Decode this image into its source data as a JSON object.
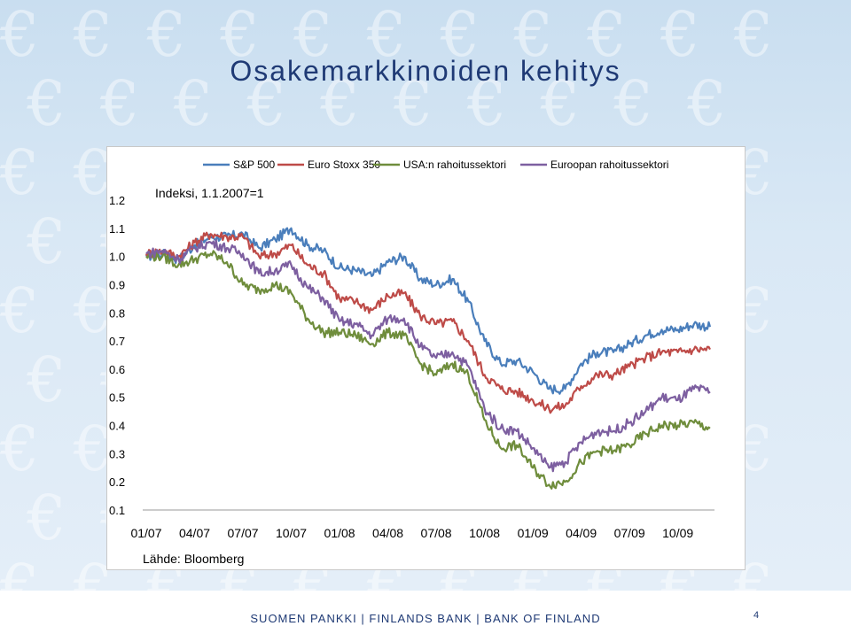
{
  "slide": {
    "title": "Osakemarkkinoiden kehitys",
    "footer": "SUOMEN PANKKI | FINLANDS BANK | BANK OF FINLAND",
    "page_number": "4"
  },
  "chart_data": {
    "type": "line",
    "subtitle": "Indeksi, 1.1.2007=1",
    "source": "Lähde: Bloomberg",
    "x": [
      "01/07",
      "02/07",
      "03/07",
      "04/07",
      "05/07",
      "06/07",
      "07/07",
      "08/07",
      "09/07",
      "10/07",
      "11/07",
      "12/07",
      "01/08",
      "02/08",
      "03/08",
      "04/08",
      "05/08",
      "06/08",
      "07/08",
      "08/08",
      "09/08",
      "10/08",
      "11/08",
      "12/08",
      "01/09",
      "02/09",
      "03/09",
      "04/09",
      "05/09",
      "06/09",
      "07/09",
      "08/09",
      "09/09",
      "10/09",
      "11/09",
      "12/09"
    ],
    "x_tick_labels": [
      "01/07",
      "04/07",
      "07/07",
      "10/07",
      "01/08",
      "04/08",
      "07/08",
      "10/08",
      "01/09",
      "04/09",
      "07/09",
      "10/09"
    ],
    "y_tick_labels": [
      "0.1",
      "0.2",
      "0.3",
      "0.4",
      "0.5",
      "0.6",
      "0.7",
      "0.8",
      "0.9",
      "1.0",
      "1.1",
      "1.2"
    ],
    "ylim": [
      0.1,
      1.2
    ],
    "grid": false,
    "legend_position": "top",
    "series": [
      {
        "name": "S&P 500",
        "color": "#4a7ebb",
        "values": [
          1.0,
          1.01,
          0.99,
          1.04,
          1.07,
          1.07,
          1.08,
          1.03,
          1.06,
          1.1,
          1.04,
          1.02,
          0.96,
          0.95,
          0.93,
          0.98,
          1.0,
          0.92,
          0.9,
          0.92,
          0.84,
          0.7,
          0.62,
          0.63,
          0.59,
          0.53,
          0.53,
          0.62,
          0.66,
          0.66,
          0.69,
          0.72,
          0.74,
          0.74,
          0.76,
          0.75
        ]
      },
      {
        "name": "Euro Stoxx 350",
        "color": "#be4b48",
        "values": [
          1.01,
          1.02,
          1.0,
          1.05,
          1.08,
          1.07,
          1.07,
          1.0,
          1.01,
          1.04,
          0.97,
          0.94,
          0.85,
          0.84,
          0.81,
          0.86,
          0.87,
          0.79,
          0.76,
          0.77,
          0.7,
          0.58,
          0.53,
          0.52,
          0.49,
          0.46,
          0.47,
          0.54,
          0.58,
          0.58,
          0.61,
          0.64,
          0.66,
          0.66,
          0.67,
          0.67
        ]
      },
      {
        "name": "USA:n rahoitussektori",
        "color": "#6f8d3c",
        "values": [
          1.0,
          1.0,
          0.97,
          0.99,
          1.01,
          0.98,
          0.9,
          0.88,
          0.9,
          0.87,
          0.78,
          0.73,
          0.73,
          0.72,
          0.69,
          0.73,
          0.72,
          0.62,
          0.58,
          0.62,
          0.58,
          0.42,
          0.32,
          0.33,
          0.25,
          0.19,
          0.2,
          0.27,
          0.31,
          0.31,
          0.33,
          0.37,
          0.4,
          0.4,
          0.41,
          0.39
        ]
      },
      {
        "name": "Euroopan rahoitussektori",
        "color": "#7d5fa0",
        "values": [
          1.01,
          1.02,
          0.99,
          1.03,
          1.05,
          1.03,
          1.01,
          0.94,
          0.95,
          0.97,
          0.89,
          0.85,
          0.77,
          0.76,
          0.72,
          0.78,
          0.78,
          0.68,
          0.64,
          0.66,
          0.61,
          0.46,
          0.39,
          0.38,
          0.32,
          0.25,
          0.27,
          0.34,
          0.38,
          0.38,
          0.41,
          0.45,
          0.5,
          0.49,
          0.53,
          0.52
        ]
      }
    ]
  }
}
